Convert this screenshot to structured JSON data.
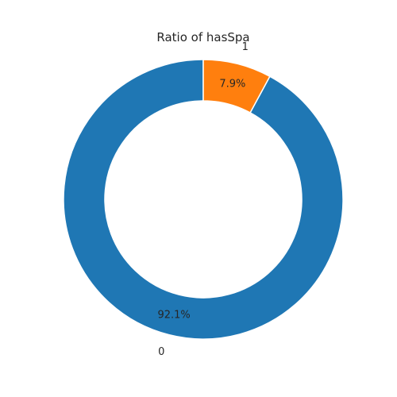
{
  "chart_data": {
    "type": "pie",
    "variant": "donut",
    "title": "Ratio of hasSpa",
    "categories": [
      "0",
      "1"
    ],
    "values": [
      92.1,
      7.9
    ],
    "value_labels": [
      "92.1%",
      "7.9%"
    ],
    "colors": [
      "#1f77b4",
      "#ff7f0e"
    ],
    "legend": "none"
  }
}
